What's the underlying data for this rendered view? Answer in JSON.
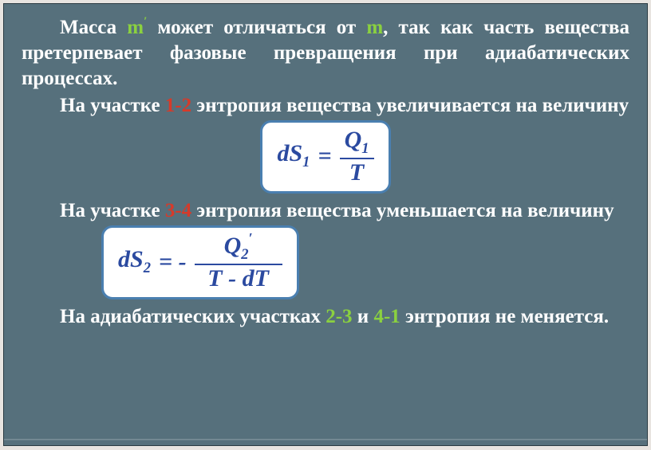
{
  "colors": {
    "bg": "#56707c",
    "text": "#ffffff",
    "accent_red": "#d63a2a",
    "accent_green": "#8bd13f",
    "accent_blue": "#2f4aa8",
    "formula_border": "#4a7fb0",
    "formula_text": "#2b4aa0"
  },
  "p1": {
    "pre": "Масса ",
    "m1": "m",
    "m1_sup": "′",
    "mid1": " может отличаться от ",
    "m2": "m",
    "post": ", так как часть вещества претерпевает фазовые превращения при адиабатических процессах."
  },
  "p2": {
    "pre": "На участке ",
    "seg": "1-2",
    "post": " энтропия вещества увеличивается на величину"
  },
  "formula1": {
    "lhs_var": "dS",
    "lhs_sub": "1",
    "eq": " = ",
    "num_var": "Q",
    "num_sub": "1",
    "den": "T"
  },
  "p3": {
    "pre": "На участке ",
    "seg": "3-4",
    "post": " энтропия вещества уменьшается на величину"
  },
  "formula2": {
    "lhs_var": "dS",
    "lhs_sub": "2",
    "eq": " = - ",
    "num_var": "Q",
    "num_sub": "2",
    "num_sup": "′",
    "den": "T - dT"
  },
  "p4": {
    "pre": "На адиабатических участках ",
    "seg1": "2-3",
    "mid": " и ",
    "seg2": "4-1",
    "post": " энтропия не меняется."
  }
}
